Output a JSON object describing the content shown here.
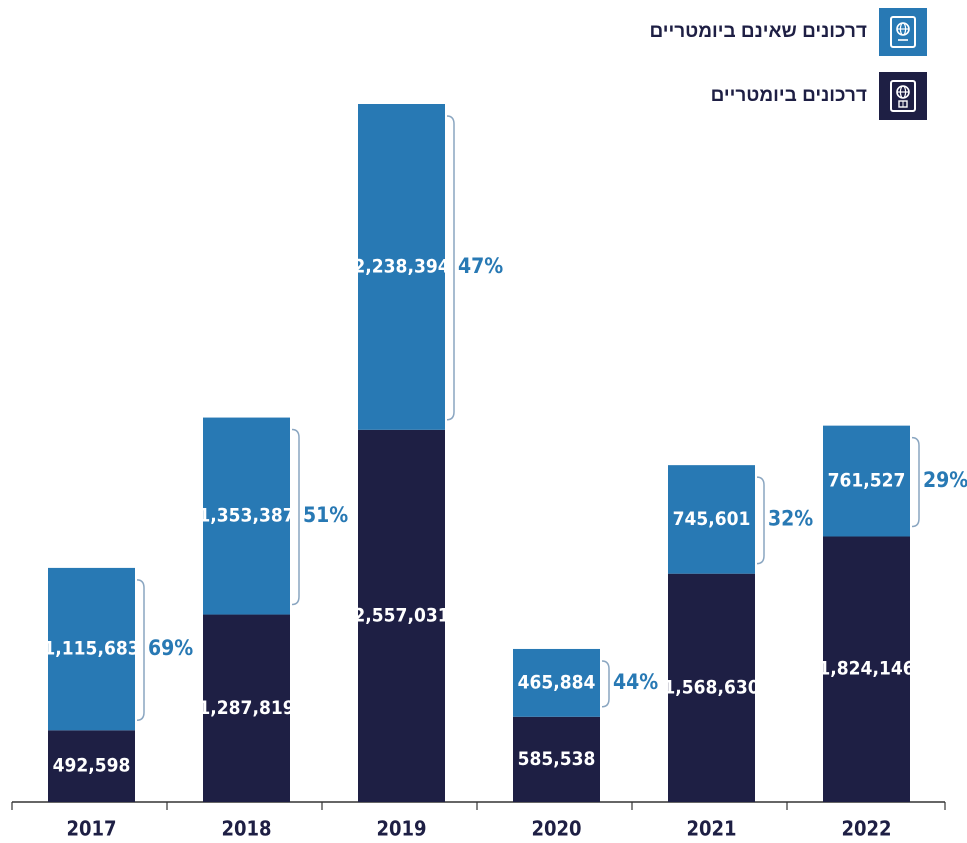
{
  "legend": {
    "non_biometric_label": "דרכונים שאינם ביומטריים",
    "biometric_label": "דרכונים ביומטריים"
  },
  "colors": {
    "non_biometric": "#2879b4",
    "biometric": "#1e1f44",
    "percent_text": "#2879b4",
    "bracket": "#8aa6c1",
    "axis": "#333333"
  },
  "chart_data": {
    "type": "bar",
    "stacked": true,
    "categories": [
      "2017",
      "2018",
      "2019",
      "2020",
      "2021",
      "2022"
    ],
    "series": [
      {
        "name": "דרכונים ביומטריים",
        "values": [
          492598,
          1287819,
          2557031,
          585538,
          1568630,
          1824146
        ],
        "labels": [
          "492,598",
          "1,287,819",
          "2,557,031",
          "585,538",
          "1,568,630",
          "1,824,146"
        ]
      },
      {
        "name": "דרכונים שאינם ביומטריים",
        "values": [
          1115683,
          1353387,
          2238394,
          465884,
          745601,
          761527
        ],
        "labels": [
          "1,115,683",
          "1,353,387",
          "2,238,394",
          "465,884",
          "745,601",
          "761,527"
        ]
      }
    ],
    "percent_labels": [
      "69%",
      "51%",
      "47%",
      "44%",
      "32%",
      "29%"
    ],
    "ylim": [
      0,
      4795425
    ],
    "grid": false,
    "legend_position": "top-right"
  }
}
